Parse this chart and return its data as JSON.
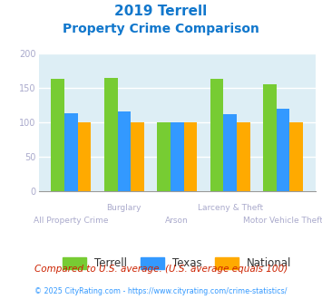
{
  "title_line1": "2019 Terrell",
  "title_line2": "Property Crime Comparison",
  "categories": [
    "All Property Crime",
    "Burglary",
    "Arson",
    "Larceny & Theft",
    "Motor Vehicle Theft"
  ],
  "terrell": [
    163,
    165,
    101,
    163,
    156
  ],
  "texas": [
    113,
    116,
    101,
    112,
    120
  ],
  "national": [
    100,
    100,
    100,
    100,
    100
  ],
  "terrell_color": "#77cc33",
  "texas_color": "#3399ff",
  "national_color": "#ffaa00",
  "bg_color": "#ddeef5",
  "ylim": [
    0,
    200
  ],
  "yticks": [
    0,
    50,
    100,
    150,
    200
  ],
  "legend_labels": [
    "Terrell",
    "Texas",
    "National"
  ],
  "footnote1": "Compared to U.S. average. (U.S. average equals 100)",
  "footnote2": "© 2025 CityRating.com - https://www.cityrating.com/crime-statistics/",
  "title_color": "#1177cc",
  "footnote1_color": "#cc2200",
  "footnote2_color": "#3399ff",
  "tick_color": "#aaaacc",
  "bar_width": 0.25
}
